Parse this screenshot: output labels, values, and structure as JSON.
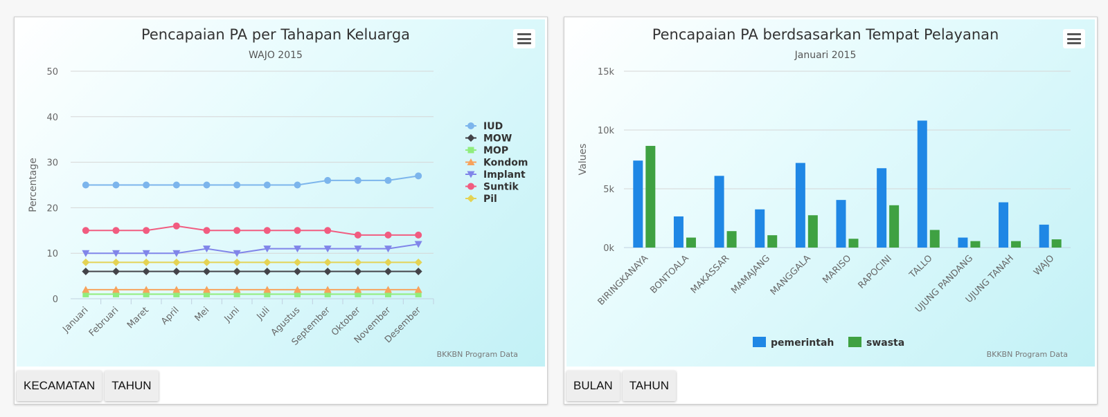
{
  "left_panel": {
    "buttons": [
      "KECAMATAN",
      "TAHUN"
    ],
    "credits": "BKKBN Program Data"
  },
  "right_panel": {
    "buttons": [
      "BULAN",
      "TAHUN"
    ],
    "credits": "BKKBN Program Data"
  },
  "chart_data": [
    {
      "type": "line",
      "title": "Pencapaian PA per Tahapan Keluarga",
      "subtitle": "WAJO 2015",
      "xlabel": "",
      "ylabel": "Percentage",
      "ylim": [
        0,
        50
      ],
      "yticks": [
        0,
        10,
        20,
        30,
        40,
        50
      ],
      "ytick_labels": [
        "0",
        "10",
        "20",
        "30",
        "40",
        "50"
      ],
      "grid": true,
      "legend": "right",
      "categories": [
        "Januari",
        "Februari",
        "Maret",
        "April",
        "Mei",
        "Juni",
        "Juli",
        "Agustus",
        "September",
        "Oktober",
        "November",
        "Desember"
      ],
      "series": [
        {
          "name": "IUD",
          "color": "#7cb5ec",
          "marker": "circle",
          "values": [
            25,
            25,
            25,
            25,
            25,
            25,
            25,
            25,
            26,
            26,
            26,
            27
          ]
        },
        {
          "name": "MOW",
          "color": "#434348",
          "marker": "diamond",
          "values": [
            6,
            6,
            6,
            6,
            6,
            6,
            6,
            6,
            6,
            6,
            6,
            6
          ]
        },
        {
          "name": "MOP",
          "color": "#90ed7d",
          "marker": "square",
          "values": [
            1,
            1,
            1,
            1,
            1,
            1,
            1,
            1,
            1,
            1,
            1,
            1
          ]
        },
        {
          "name": "Kondom",
          "color": "#f7a35c",
          "marker": "triangle",
          "values": [
            2,
            2,
            2,
            2,
            2,
            2,
            2,
            2,
            2,
            2,
            2,
            2
          ]
        },
        {
          "name": "Implant",
          "color": "#8085e9",
          "marker": "triangle-down",
          "values": [
            10,
            10,
            10,
            10,
            11,
            10,
            11,
            11,
            11,
            11,
            11,
            12
          ]
        },
        {
          "name": "Suntik",
          "color": "#f15c80",
          "marker": "circle",
          "values": [
            15,
            15,
            15,
            16,
            15,
            15,
            15,
            15,
            15,
            14,
            14,
            14
          ]
        },
        {
          "name": "Pil",
          "color": "#e4d354",
          "marker": "diamond",
          "values": [
            8,
            8,
            8,
            8,
            8,
            8,
            8,
            8,
            8,
            8,
            8,
            8
          ]
        }
      ]
    },
    {
      "type": "bar",
      "title": "Pencapaian PA berdsasarkan Tempat Pelayanan",
      "subtitle": "Januari 2015",
      "xlabel": "",
      "ylabel": "Values",
      "ylim": [
        0,
        15000
      ],
      "yticks": [
        0,
        5000,
        10000,
        15000
      ],
      "ytick_labels": [
        "0k",
        "5k",
        "10k",
        "15k"
      ],
      "grid": true,
      "legend": "bottom-center",
      "categories": [
        "BIRINGKANAYA",
        "BONTOALA",
        "MAKASSAR",
        "MAMAJANG",
        "MANGGALA",
        "MARISO",
        "RAPOCINI",
        "TALLO",
        "UJUNG PANDANG",
        "UJUNG TANAH",
        "WAJO"
      ],
      "series": [
        {
          "name": "pemerintah",
          "color": "#1f87e5",
          "values": [
            7400,
            2650,
            6100,
            3250,
            7200,
            4050,
            6750,
            10800,
            850,
            3850,
            1950
          ]
        },
        {
          "name": "swasta",
          "color": "#3fa142",
          "values": [
            8650,
            850,
            1400,
            1050,
            2750,
            750,
            3600,
            1500,
            550,
            550,
            700
          ]
        }
      ]
    }
  ]
}
